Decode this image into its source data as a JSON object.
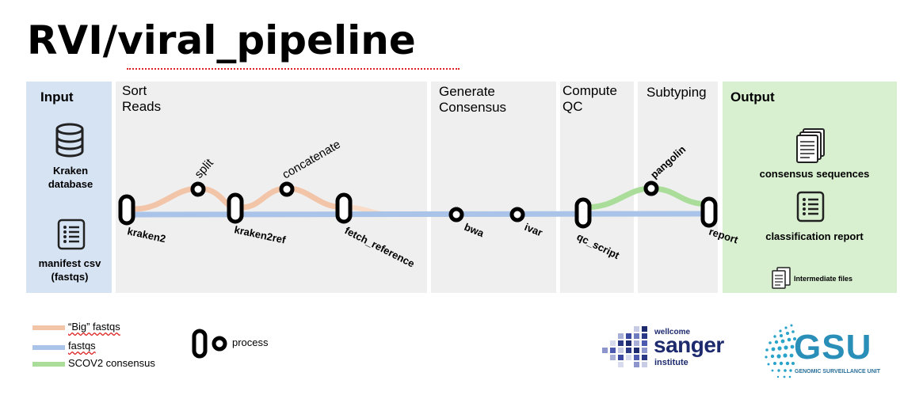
{
  "title": "RVI/viral_pipeline",
  "sections": {
    "input": "Input",
    "sort_reads": "Sort\nReads",
    "generate_consensus": "Generate\nConsensus",
    "compute_qc": "Compute\nQC",
    "subtyping": "Subtyping",
    "output": "Output"
  },
  "inputs": {
    "kraken_db": "Kraken\ndatabase",
    "manifest": "manifest csv\n(fastqs)"
  },
  "outputs": {
    "consensus": "consensus sequences",
    "classification": "classification report",
    "intermediate": "Intermediate files"
  },
  "processes": {
    "kraken2": "kraken2",
    "split": "split",
    "kraken2ref": "kraken2ref",
    "concatenate": "concatenate",
    "fetch_reference": "fetch_reference",
    "bwa": "bwa",
    "ivar": "ivar",
    "qc_script": "qc_script",
    "pangolin": "pangolin",
    "report": "report"
  },
  "legend": {
    "big_fastqs": "“Big” fastqs",
    "fastqs": "fastqs",
    "scov2": "SCOV2 consensus",
    "process": "process"
  },
  "logos": {
    "sanger_small": "wellcome",
    "sanger_big": "sanger",
    "sanger_sub": "institute",
    "gsu": "GSU",
    "gsu_sub": "GENOMIC SURVEILLANCE UNIT"
  },
  "colors": {
    "big_fastqs": "#f2c4a8",
    "fastqs": "#a9c4e8",
    "scov2": "#a9dd99",
    "input_bg": "#d6e3f3",
    "output_bg": "#d8f0d0",
    "section_bg": "#efefef"
  }
}
